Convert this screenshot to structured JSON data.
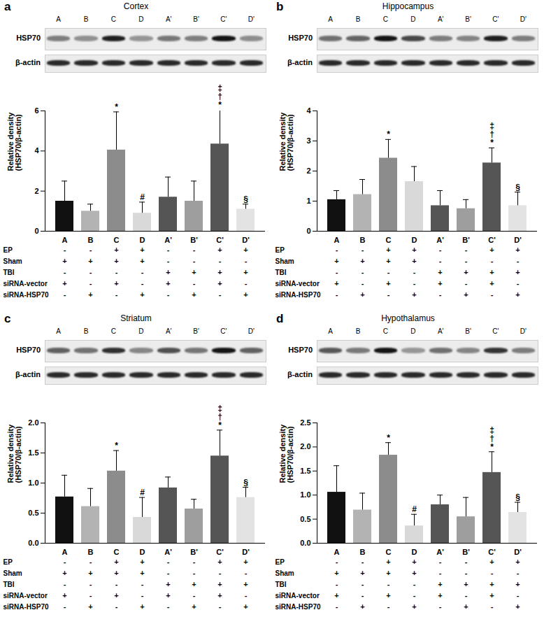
{
  "chart_data": [
    {
      "type": "bar",
      "panel": "a",
      "title": "Cortex",
      "categories": [
        "A",
        "B",
        "C",
        "D",
        "A'",
        "B'",
        "C'",
        "D'"
      ],
      "values": [
        1.5,
        1.0,
        4.05,
        0.9,
        1.7,
        1.5,
        4.35,
        1.1
      ],
      "errors": [
        1.0,
        0.35,
        1.9,
        0.55,
        1.0,
        1.0,
        1.7,
        0.25
      ],
      "significance": [
        null,
        null,
        "*",
        "#",
        null,
        null,
        "‡\n†\n*",
        "§"
      ],
      "colors": [
        "#111111",
        "#b3b3b3",
        "#8c8c8c",
        "#d9d9d9",
        "#555555",
        "#9e9e9e",
        "#555555",
        "#e3e3e3"
      ],
      "ylim": [
        0,
        6
      ],
      "yticks": [
        0,
        2,
        4,
        6
      ],
      "ylabel": "Relative density\n(HSP70/β-actin)",
      "blot": {
        "lanes": [
          "A",
          "B",
          "C",
          "D",
          "A'",
          "B'",
          "C'",
          "D'"
        ],
        "rows": [
          "HSP70",
          "β-actin"
        ]
      },
      "conditions": [
        {
          "label": "EP",
          "marks": [
            "-",
            "-",
            "+",
            "+",
            "-",
            "-",
            "+",
            "+"
          ]
        },
        {
          "label": "Sham",
          "marks": [
            "+",
            "+",
            "+",
            "+",
            "-",
            "-",
            "-",
            "-"
          ]
        },
        {
          "label": "TBI",
          "marks": [
            "-",
            "-",
            "-",
            "-",
            "+",
            "+",
            "+",
            "+"
          ]
        },
        {
          "label": "siRNA-vector",
          "marks": [
            "+",
            "-",
            "+",
            "-",
            "+",
            "-",
            "+",
            "-"
          ]
        },
        {
          "label": "siRNA-HSP70",
          "marks": [
            "-",
            "+",
            "-",
            "+",
            "-",
            "+",
            "-",
            "+"
          ]
        }
      ]
    },
    {
      "type": "bar",
      "panel": "b",
      "title": "Hippocampus",
      "categories": [
        "A",
        "B",
        "C",
        "D",
        "A'",
        "B'",
        "C'",
        "D'"
      ],
      "values": [
        1.05,
        1.22,
        2.43,
        1.65,
        0.85,
        0.75,
        2.27,
        0.85
      ],
      "errors": [
        0.3,
        0.5,
        0.62,
        0.5,
        0.5,
        0.3,
        0.5,
        0.45
      ],
      "significance": [
        null,
        null,
        "*",
        null,
        null,
        null,
        "‡\n†\n*",
        "§"
      ],
      "colors": [
        "#111111",
        "#b3b3b3",
        "#8c8c8c",
        "#d9d9d9",
        "#555555",
        "#9e9e9e",
        "#555555",
        "#e3e3e3"
      ],
      "ylim": [
        0,
        4
      ],
      "yticks": [
        0,
        1,
        2,
        3,
        4
      ],
      "ylabel": "Relative density\n(HSP70/β-actin)",
      "blot": {
        "lanes": [
          "A",
          "B",
          "C",
          "D",
          "A'",
          "B'",
          "C'",
          "D'"
        ],
        "rows": [
          "HSP70",
          "β-actin"
        ]
      },
      "conditions": [
        {
          "label": "EP",
          "marks": [
            "-",
            "-",
            "+",
            "+",
            "-",
            "-",
            "+",
            "+"
          ]
        },
        {
          "label": "Sham",
          "marks": [
            "+",
            "+",
            "+",
            "+",
            "-",
            "-",
            "-",
            "-"
          ]
        },
        {
          "label": "TBI",
          "marks": [
            "-",
            "-",
            "-",
            "-",
            "+",
            "+",
            "+",
            "+"
          ]
        },
        {
          "label": "siRNA-vector",
          "marks": [
            "+",
            "-",
            "+",
            "-",
            "+",
            "-",
            "+",
            "-"
          ]
        },
        {
          "label": "siRNA-HSP70",
          "marks": [
            "-",
            "+",
            "-",
            "+",
            "-",
            "+",
            "-",
            "+"
          ]
        }
      ]
    },
    {
      "type": "bar",
      "panel": "c",
      "title": "Striatum",
      "categories": [
        "A",
        "B",
        "C",
        "D",
        "A'",
        "B'",
        "C'",
        "D'"
      ],
      "values": [
        0.77,
        0.61,
        1.2,
        0.43,
        0.92,
        0.57,
        1.45,
        0.76
      ],
      "errors": [
        0.36,
        0.3,
        0.34,
        0.33,
        0.18,
        0.16,
        0.43,
        0.17
      ],
      "significance": [
        null,
        null,
        "*",
        "#",
        null,
        null,
        "‡\n†\n*",
        "§"
      ],
      "colors": [
        "#111111",
        "#b3b3b3",
        "#8c8c8c",
        "#d9d9d9",
        "#555555",
        "#9e9e9e",
        "#555555",
        "#e3e3e3"
      ],
      "ylim": [
        0,
        2
      ],
      "yticks": [
        {
          "value": 0,
          "label": "0.0"
        },
        {
          "value": 0.5,
          "label": "0.5"
        },
        {
          "value": 1,
          "label": "1.0"
        },
        {
          "value": 1.5,
          "label": "1.5"
        },
        {
          "value": 2,
          "label": "2.0"
        }
      ],
      "ylabel": "Relative density\n(HSP70/β-actin)",
      "blot": {
        "lanes": [
          "A",
          "B",
          "C",
          "D",
          "A'",
          "B'",
          "C'",
          "D'"
        ],
        "rows": [
          "HSP70",
          "β-actin"
        ]
      },
      "conditions": [
        {
          "label": "EP",
          "marks": [
            "-",
            "-",
            "+",
            "+",
            "-",
            "-",
            "+",
            "+"
          ]
        },
        {
          "label": "Sham",
          "marks": [
            "+",
            "+",
            "+",
            "+",
            "-",
            "-",
            "-",
            "-"
          ]
        },
        {
          "label": "TBI",
          "marks": [
            "-",
            "-",
            "-",
            "-",
            "+",
            "+",
            "+",
            "+"
          ]
        },
        {
          "label": "siRNA-vector",
          "marks": [
            "+",
            "-",
            "+",
            "-",
            "+",
            "-",
            "+",
            "-"
          ]
        },
        {
          "label": "siRNA-HSP70",
          "marks": [
            "-",
            "+",
            "-",
            "+",
            "-",
            "+",
            "-",
            "+"
          ]
        }
      ]
    },
    {
      "type": "bar",
      "panel": "d",
      "title": "Hypothalamus",
      "categories": [
        "A",
        "B",
        "C",
        "D",
        "A'",
        "B'",
        "C'",
        "D'"
      ],
      "values": [
        1.06,
        0.69,
        1.83,
        0.36,
        0.8,
        0.55,
        1.47,
        0.64
      ],
      "errors": [
        0.55,
        0.35,
        0.26,
        0.24,
        0.2,
        0.4,
        0.43,
        0.21
      ],
      "significance": [
        null,
        null,
        "*",
        "#",
        null,
        null,
        "‡\n†\n*",
        "§"
      ],
      "colors": [
        "#111111",
        "#b3b3b3",
        "#8c8c8c",
        "#d9d9d9",
        "#555555",
        "#9e9e9e",
        "#555555",
        "#e3e3e3"
      ],
      "ylim": [
        0,
        2.5
      ],
      "yticks": [
        {
          "value": 0,
          "label": "0.0"
        },
        {
          "value": 0.5,
          "label": "0.5"
        },
        {
          "value": 1,
          "label": "1.0"
        },
        {
          "value": 1.5,
          "label": "1.5"
        },
        {
          "value": 2,
          "label": "2.0"
        },
        {
          "value": 2.5,
          "label": "2.5"
        }
      ],
      "ylabel": "Relative density\n(HSP70/β-actin)",
      "blot": {
        "lanes": [
          "A",
          "B",
          "C",
          "D",
          "A'",
          "B'",
          "C'",
          "D'"
        ],
        "rows": [
          "HSP70",
          "β-actin"
        ]
      },
      "conditions": [
        {
          "label": "EP",
          "marks": [
            "-",
            "-",
            "+",
            "+",
            "-",
            "-",
            "+",
            "+"
          ]
        },
        {
          "label": "Sham",
          "marks": [
            "+",
            "+",
            "+",
            "+",
            "-",
            "-",
            "-",
            "-"
          ]
        },
        {
          "label": "TBI",
          "marks": [
            "-",
            "-",
            "-",
            "-",
            "+",
            "+",
            "+",
            "+"
          ]
        },
        {
          "label": "siRNA-vector",
          "marks": [
            "+",
            "-",
            "+",
            "-",
            "+",
            "-",
            "+",
            "-"
          ]
        },
        {
          "label": "siRNA-HSP70",
          "marks": [
            "-",
            "+",
            "-",
            "+",
            "-",
            "+",
            "-",
            "+"
          ]
        }
      ]
    }
  ]
}
